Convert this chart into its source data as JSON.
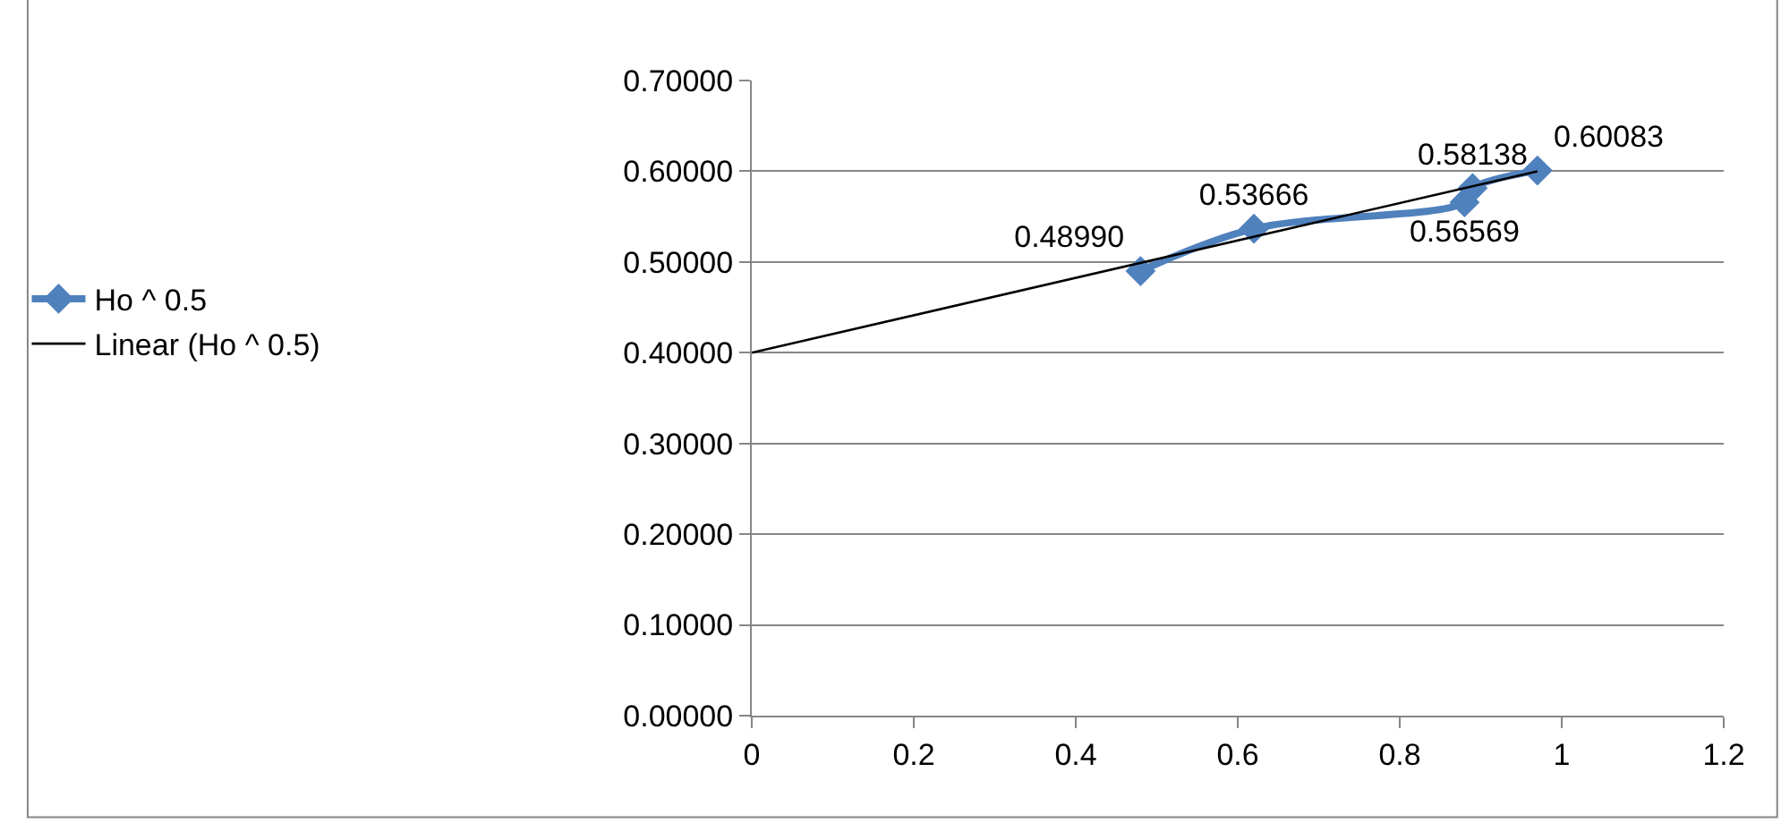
{
  "chart_data": {
    "type": "line",
    "xlim": [
      0,
      1.2
    ],
    "xticks": [
      0,
      0.2,
      0.4,
      0.6,
      0.8,
      1,
      1.2
    ],
    "ylim": [
      0,
      0.7
    ],
    "yticks": [
      {
        "value": 0,
        "label": "0.00000"
      },
      {
        "value": 0.1,
        "label": "0.10000"
      },
      {
        "value": 0.2,
        "label": "0.20000"
      },
      {
        "value": 0.3,
        "label": "0.30000"
      },
      {
        "value": 0.4,
        "label": "0.40000"
      },
      {
        "value": 0.5,
        "label": "0.50000"
      },
      {
        "value": 0.6,
        "label": "0.60000"
      },
      {
        "value": 0.7,
        "label": "0.70000"
      }
    ],
    "grid": "y",
    "legend": "left",
    "marker": "diamond",
    "line_style": "solid",
    "series": [
      {
        "name": "Ho ^ 0.5",
        "color": "#4f81bd",
        "x": [
          0.48,
          0.62,
          0.88,
          0.89,
          0.97
        ],
        "values": [
          0.4899,
          0.53666,
          0.56569,
          0.58138,
          0.60083
        ],
        "value_labels": [
          "0.48990",
          "0.53666",
          "0.56569",
          "0.58138",
          "0.60083"
        ]
      },
      {
        "name": "Linear (Ho ^ 0.5)",
        "type": "line",
        "color": "#000000",
        "marker": "none",
        "x": [
          0,
          0.97
        ],
        "values": [
          0.4,
          0.6
        ]
      }
    ]
  }
}
